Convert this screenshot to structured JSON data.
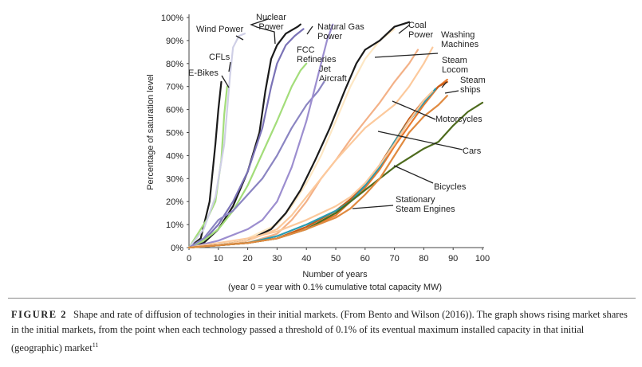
{
  "chart_data": {
    "type": "line",
    "xlabel": "Number of years",
    "xlabel2": "(year 0 = year with  0.1% cumulative total capacity MW)",
    "ylabel": "Percentage of saturation level",
    "xlim": [
      0,
      100
    ],
    "ylim": [
      0,
      100
    ],
    "x_ticks": [
      "0",
      "10",
      "20",
      "30",
      "40",
      "50",
      "60",
      "70",
      "80",
      "90",
      "100"
    ],
    "y_ticks": [
      "0%",
      "10%",
      "20%",
      "30%",
      "40%",
      "50%",
      "60%",
      "70%",
      "80%",
      "90%",
      "100%"
    ],
    "grid": false,
    "series": [
      {
        "name": "E-Bikes",
        "color": "#1a1a1a",
        "points": [
          [
            0,
            0
          ],
          [
            4,
            4
          ],
          [
            7,
            20
          ],
          [
            9,
            45
          ],
          [
            10,
            60
          ],
          [
            11,
            72
          ]
        ]
      },
      {
        "name": "CFLs",
        "color": "#a3dd7a",
        "points": [
          [
            0,
            0
          ],
          [
            3,
            6
          ],
          [
            6,
            12
          ],
          [
            9,
            20
          ],
          [
            11,
            38
          ],
          [
            12,
            58
          ],
          [
            13,
            70
          ]
        ]
      },
      {
        "name": "Wind Power",
        "color": "#cfcfe6",
        "points": [
          [
            0,
            0
          ],
          [
            5,
            8
          ],
          [
            9,
            22
          ],
          [
            12,
            45
          ],
          [
            14,
            75
          ],
          [
            15,
            87
          ],
          [
            17,
            92
          ],
          [
            19,
            93
          ]
        ]
      },
      {
        "name": "Nuclear Power",
        "color": "#1a1a1a",
        "points": [
          [
            0,
            0
          ],
          [
            5,
            2
          ],
          [
            10,
            8
          ],
          [
            15,
            18
          ],
          [
            20,
            33
          ],
          [
            24,
            50
          ],
          [
            26,
            68
          ],
          [
            28,
            82
          ],
          [
            30,
            88
          ],
          [
            33,
            93
          ],
          [
            37,
            96
          ],
          [
            38,
            97
          ]
        ]
      },
      {
        "name": "Nuclear Power",
        "color": "#7a72b6",
        "points": [
          [
            0,
            0
          ],
          [
            5,
            3
          ],
          [
            10,
            10
          ],
          [
            15,
            20
          ],
          [
            20,
            33
          ],
          [
            25,
            52
          ],
          [
            28,
            70
          ],
          [
            30,
            80
          ],
          [
            33,
            88
          ],
          [
            36,
            92
          ],
          [
            39,
            95
          ]
        ]
      },
      {
        "name": "FCC Refineries",
        "color": "#a3dd7a",
        "points": [
          [
            0,
            0
          ],
          [
            5,
            3
          ],
          [
            10,
            8
          ],
          [
            15,
            16
          ],
          [
            20,
            27
          ],
          [
            25,
            41
          ],
          [
            30,
            55
          ],
          [
            35,
            70
          ],
          [
            38,
            77
          ],
          [
            40,
            80
          ]
        ]
      },
      {
        "name": "Jet Aircraft",
        "color": "#8b85c2",
        "points": [
          [
            0,
            0
          ],
          [
            5,
            4
          ],
          [
            10,
            12
          ],
          [
            15,
            16
          ],
          [
            20,
            23
          ],
          [
            25,
            30
          ],
          [
            30,
            40
          ],
          [
            35,
            52
          ],
          [
            40,
            62
          ],
          [
            44,
            68
          ],
          [
            46,
            72
          ]
        ]
      },
      {
        "name": "Natural Gas Power",
        "color": "#9c8ecf",
        "points": [
          [
            0,
            0
          ],
          [
            10,
            3
          ],
          [
            20,
            8
          ],
          [
            25,
            12
          ],
          [
            30,
            20
          ],
          [
            35,
            35
          ],
          [
            40,
            55
          ],
          [
            44,
            75
          ],
          [
            47,
            90
          ],
          [
            49,
            97
          ]
        ]
      },
      {
        "name": "Natural Gas Power",
        "color": "#fde7c4",
        "points": [
          [
            0,
            0
          ],
          [
            10,
            1
          ],
          [
            20,
            4
          ],
          [
            30,
            10
          ],
          [
            35,
            18
          ],
          [
            40,
            28
          ],
          [
            45,
            40
          ],
          [
            50,
            55
          ],
          [
            55,
            70
          ],
          [
            60,
            82
          ],
          [
            65,
            90
          ],
          [
            70,
            95
          ]
        ]
      },
      {
        "name": "Coal Power",
        "color": "#1a1a1a",
        "points": [
          [
            0,
            0
          ],
          [
            10,
            1
          ],
          [
            20,
            3
          ],
          [
            28,
            8
          ],
          [
            33,
            15
          ],
          [
            38,
            25
          ],
          [
            43,
            38
          ],
          [
            48,
            52
          ],
          [
            53,
            68
          ],
          [
            57,
            80
          ],
          [
            60,
            86
          ],
          [
            65,
            90
          ],
          [
            70,
            96
          ],
          [
            75,
            98
          ]
        ]
      },
      {
        "name": "Coal Power",
        "color": "#f3b187",
        "points": [
          [
            0,
            0
          ],
          [
            10,
            1
          ],
          [
            20,
            2
          ],
          [
            30,
            6
          ],
          [
            35,
            12
          ],
          [
            40,
            20
          ],
          [
            45,
            30
          ],
          [
            50,
            38
          ],
          [
            55,
            47
          ],
          [
            60,
            55
          ],
          [
            65,
            63
          ],
          [
            70,
            72
          ],
          [
            75,
            80
          ],
          [
            78,
            86
          ]
        ]
      },
      {
        "name": "Washing Machines",
        "color": "#fcc99c",
        "points": [
          [
            0,
            0
          ],
          [
            10,
            1
          ],
          [
            20,
            3
          ],
          [
            30,
            8
          ],
          [
            35,
            14
          ],
          [
            40,
            22
          ],
          [
            45,
            30
          ],
          [
            50,
            38
          ],
          [
            55,
            45
          ],
          [
            60,
            52
          ],
          [
            65,
            57
          ],
          [
            70,
            62
          ],
          [
            75,
            70
          ],
          [
            80,
            80
          ],
          [
            83,
            87
          ]
        ]
      },
      {
        "name": "Steam Locom",
        "color": "#e97b30",
        "points": [
          [
            0,
            0
          ],
          [
            10,
            1
          ],
          [
            20,
            2
          ],
          [
            30,
            4
          ],
          [
            40,
            8
          ],
          [
            50,
            14
          ],
          [
            55,
            20
          ],
          [
            60,
            26
          ],
          [
            65,
            34
          ],
          [
            70,
            44
          ],
          [
            75,
            53
          ],
          [
            80,
            62
          ],
          [
            85,
            70
          ],
          [
            88,
            73
          ]
        ]
      },
      {
        "name": "Steam ships",
        "color": "#c65b17",
        "points": [
          [
            0,
            0
          ],
          [
            10,
            1
          ],
          [
            20,
            2
          ],
          [
            30,
            4
          ],
          [
            40,
            9
          ],
          [
            50,
            16
          ],
          [
            55,
            21
          ],
          [
            60,
            27
          ],
          [
            65,
            36
          ],
          [
            70,
            46
          ],
          [
            75,
            56
          ],
          [
            80,
            64
          ],
          [
            85,
            70
          ],
          [
            88,
            72
          ]
        ]
      },
      {
        "name": "Cars",
        "color": "#2a9bb0",
        "points": [
          [
            0,
            0
          ],
          [
            10,
            1
          ],
          [
            20,
            2
          ],
          [
            30,
            5
          ],
          [
            40,
            10
          ],
          [
            50,
            16
          ],
          [
            55,
            20
          ],
          [
            60,
            27
          ],
          [
            65,
            35
          ],
          [
            70,
            46
          ],
          [
            75,
            55
          ],
          [
            80,
            63
          ],
          [
            84,
            69
          ]
        ]
      },
      {
        "name": "Motorcycles",
        "color": "#fcc99c",
        "points": [
          [
            0,
            0
          ],
          [
            10,
            2
          ],
          [
            20,
            4
          ],
          [
            30,
            7
          ],
          [
            40,
            12
          ],
          [
            50,
            18
          ],
          [
            55,
            22
          ],
          [
            60,
            28
          ],
          [
            65,
            36
          ],
          [
            70,
            45
          ],
          [
            75,
            55
          ],
          [
            80,
            64
          ],
          [
            83,
            68
          ]
        ]
      },
      {
        "name": "Bicycles",
        "color": "#4e6b1e",
        "points": [
          [
            0,
            0
          ],
          [
            10,
            1
          ],
          [
            20,
            2
          ],
          [
            30,
            4
          ],
          [
            40,
            8
          ],
          [
            50,
            15
          ],
          [
            55,
            20
          ],
          [
            60,
            25
          ],
          [
            65,
            30
          ],
          [
            70,
            35
          ],
          [
            75,
            39
          ],
          [
            80,
            43
          ],
          [
            85,
            46
          ],
          [
            90,
            53
          ],
          [
            95,
            59
          ],
          [
            100,
            63
          ]
        ]
      },
      {
        "name": "Stationary Steam Engines",
        "color": "#e08a40",
        "points": [
          [
            0,
            0
          ],
          [
            10,
            1
          ],
          [
            20,
            2
          ],
          [
            30,
            4
          ],
          [
            40,
            8
          ],
          [
            50,
            13
          ],
          [
            55,
            17
          ],
          [
            60,
            23
          ],
          [
            65,
            30
          ],
          [
            70,
            40
          ],
          [
            75,
            50
          ],
          [
            80,
            57
          ],
          [
            85,
            62
          ],
          [
            88,
            66
          ]
        ]
      }
    ],
    "annotations": [
      {
        "lines": [
          "Nuclear",
          "Power"
        ]
      },
      {
        "lines": [
          "Wind Power"
        ]
      },
      {
        "lines": [
          "CFLs"
        ]
      },
      {
        "lines": [
          "E-Bikes"
        ]
      },
      {
        "lines": [
          "Natural Gas",
          "Power"
        ]
      },
      {
        "lines": [
          "FCC",
          "Refineries"
        ]
      },
      {
        "lines": [
          "Jet",
          "Aircraft"
        ]
      },
      {
        "lines": [
          "Coal",
          "Power"
        ]
      },
      {
        "lines": [
          "Washing",
          "Machines"
        ]
      },
      {
        "lines": [
          "Steam",
          "Locom"
        ]
      },
      {
        "lines": [
          "Steam",
          "ships"
        ]
      },
      {
        "lines": [
          "Motorcycles"
        ]
      },
      {
        "lines": [
          "Cars"
        ]
      },
      {
        "lines": [
          "Bicycles"
        ]
      },
      {
        "lines": [
          "Stationary",
          "Steam Engines"
        ]
      }
    ]
  },
  "caption": {
    "figure_label": "FIGURE 2",
    "text": "Shape and rate of diffusion of technologies in their initial markets. (From Bento and Wilson (2016)). The graph shows rising market shares in the initial markets, from the point when each technology passed a threshold of 0.1% of its eventual maximum installed capacity in that initial (geographic) market",
    "footnote": "11"
  }
}
